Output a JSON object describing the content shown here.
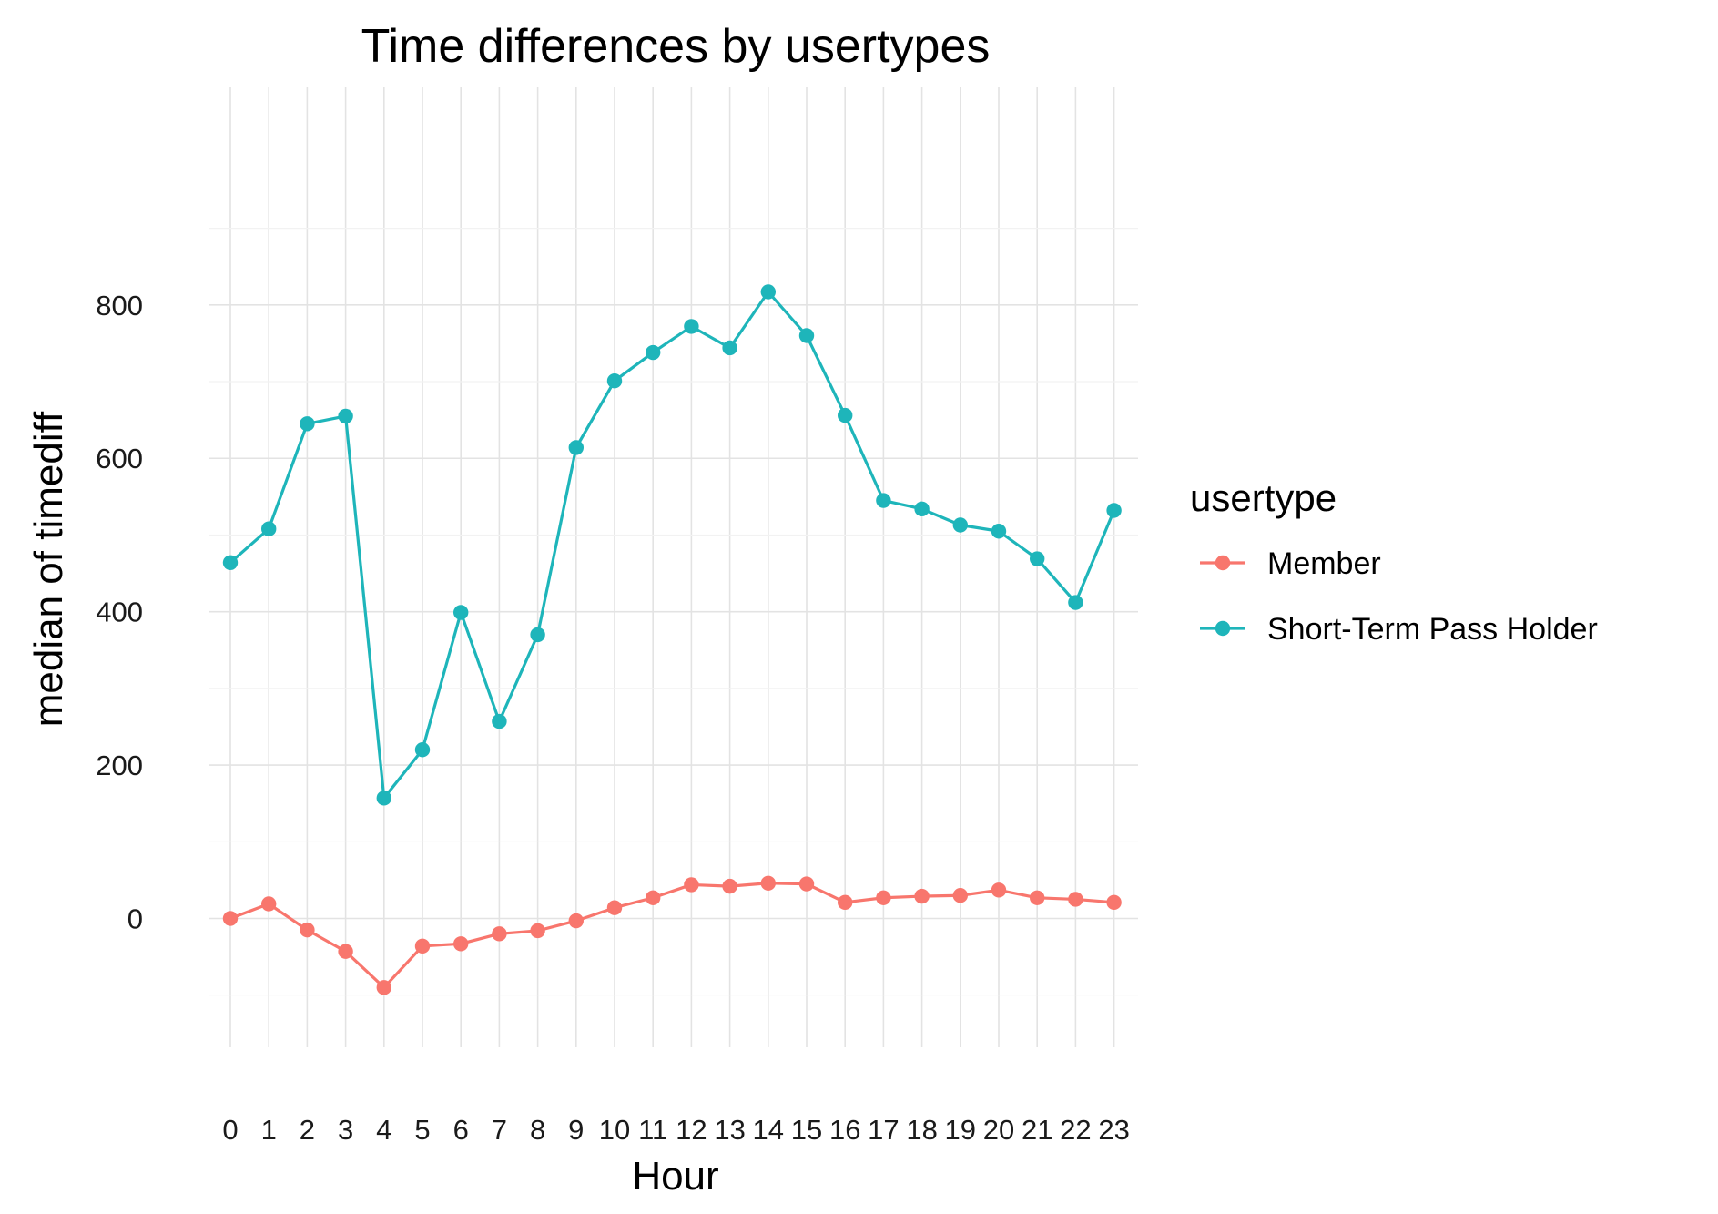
{
  "chart_data": {
    "type": "line",
    "title": "Time differences by usertypes",
    "xlabel": "Hour",
    "ylabel": "median of timediff",
    "categories": [
      "0",
      "1",
      "2",
      "3",
      "4",
      "5",
      "6",
      "7",
      "8",
      "9",
      "10",
      "11",
      "12",
      "13",
      "14",
      "15",
      "16",
      "17",
      "18",
      "19",
      "20",
      "21",
      "22",
      "23"
    ],
    "ylim": [
      -135,
      870
    ],
    "yticks": [
      0,
      200,
      400,
      600,
      800
    ],
    "grid": true,
    "legend": {
      "title": "usertype",
      "position": "right"
    },
    "series": [
      {
        "name": "Member",
        "color": "#F8766D",
        "values": [
          0,
          19,
          -15,
          -43,
          -90,
          -36,
          -33,
          -20,
          -16,
          -3,
          14,
          27,
          44,
          42,
          46,
          45,
          21,
          27,
          29,
          30,
          37,
          27,
          25,
          21
        ]
      },
      {
        "name": "Short-Term Pass Holder",
        "color": "#1EB5BA",
        "values": [
          464,
          508,
          645,
          655,
          157,
          220,
          399,
          257,
          370,
          614,
          701,
          738,
          772,
          744,
          817,
          760,
          656,
          545,
          534,
          513,
          505,
          469,
          412,
          532
        ]
      }
    ]
  }
}
